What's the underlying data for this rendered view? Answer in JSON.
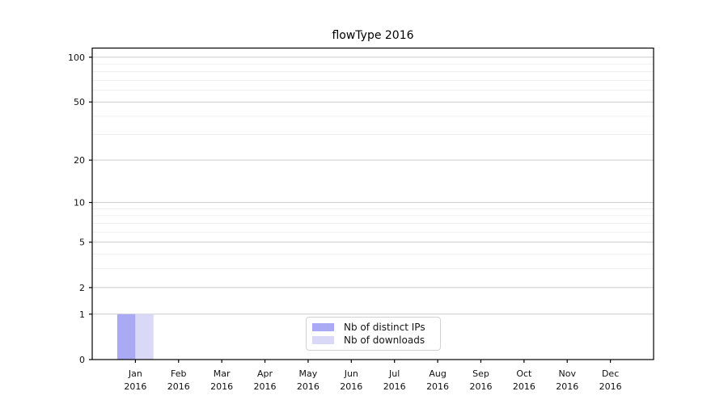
{
  "chart_data": {
    "type": "bar",
    "title": "flowType 2016",
    "categories": [
      "Jan",
      "Feb",
      "Mar",
      "Apr",
      "May",
      "Jun",
      "Jul",
      "Aug",
      "Sep",
      "Oct",
      "Nov",
      "Dec"
    ],
    "category_year": "2016",
    "series": [
      {
        "name": "Nb of distinct IPs",
        "color": "#a9a9f4",
        "values": [
          1,
          0,
          0,
          0,
          0,
          0,
          0,
          0,
          0,
          0,
          0,
          0
        ]
      },
      {
        "name": "Nb of downloads",
        "color": "#d9d9f7",
        "values": [
          1,
          0,
          0,
          0,
          0,
          0,
          0,
          0,
          0,
          0,
          0,
          0
        ]
      }
    ],
    "yscale": "log1p",
    "ylim": [
      0,
      115
    ],
    "y_major_ticks": [
      0,
      1,
      2,
      5,
      10,
      20,
      50,
      100
    ],
    "y_minor_gridlines": [
      3,
      4,
      6,
      7,
      8,
      9,
      30,
      40,
      60,
      70,
      80,
      90
    ],
    "xlabel": "",
    "ylabel": "",
    "grid": "horizontal",
    "legend_position": "lower-center-inside",
    "colors": {
      "major_grid": "#cccccc",
      "minor_grid": "#ececec",
      "axis": "#000000",
      "tick_text": "#111111",
      "background": "#ffffff"
    }
  }
}
